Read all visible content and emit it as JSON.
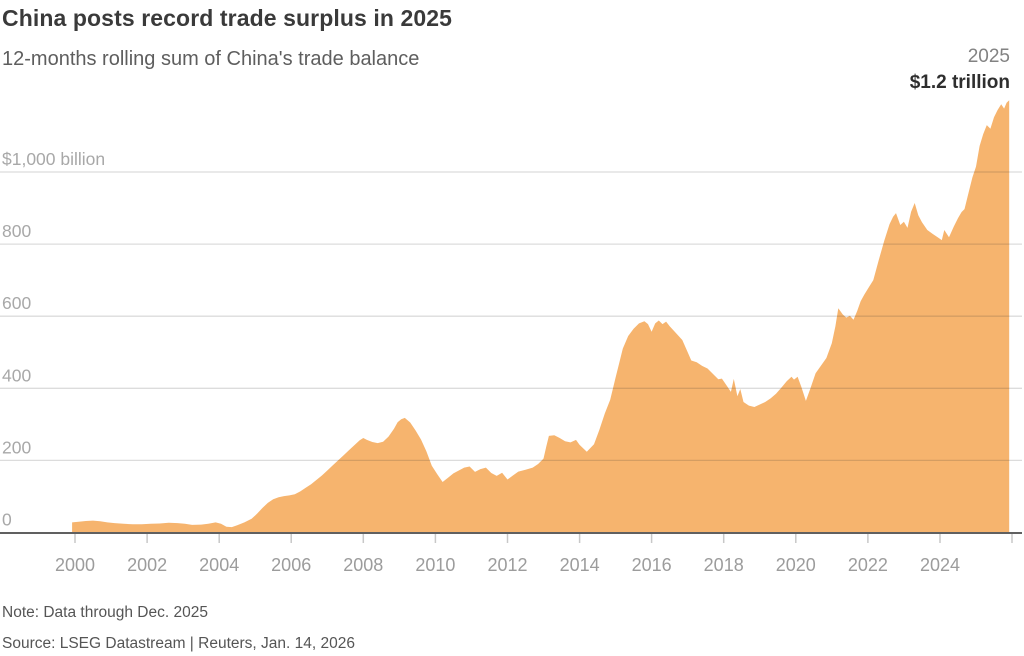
{
  "header": {
    "title": "China posts record trade surplus in 2025",
    "subtitle": "12-months rolling sum of China's trade balance"
  },
  "annotation": {
    "year": "2025",
    "value": "$1.2 trillion"
  },
  "footer": {
    "note": "Note: Data through Dec. 2025",
    "source": "Source: LSEG Datastream | Reuters, Jan. 14, 2026"
  },
  "colors": {
    "area": "#f6b46e",
    "grid": "rgba(40,40,40,0.16)",
    "axis": "#606060",
    "tick": "#c8c8c8",
    "y_label": "#a8a8a8",
    "x_label": "#9c9c9c"
  },
  "chart_data": {
    "type": "area",
    "title": "China posts record trade surplus in 2025",
    "subtitle": "12-months rolling sum of China's trade balance",
    "unit": "US$ billion",
    "x_range": [
      1999.92,
      2025.92
    ],
    "ylim": [
      0,
      1250
    ],
    "grid": "horizontal",
    "legend_position": "none",
    "yticks": [
      {
        "value": 0,
        "label": "0"
      },
      {
        "value": 200,
        "label": "200"
      },
      {
        "value": 400,
        "label": "400"
      },
      {
        "value": 600,
        "label": "600"
      },
      {
        "value": 800,
        "label": "800"
      },
      {
        "value": 1000,
        "label": "$1,000 billion"
      }
    ],
    "xticks": [
      2000,
      2002,
      2004,
      2006,
      2008,
      2010,
      2012,
      2014,
      2016,
      2018,
      2020,
      2022,
      2024
    ],
    "xticks_unlabeled": [
      2026
    ],
    "series": [
      {
        "name": "China trade balance, 12-month rolling sum ($ billion)",
        "points": [
          [
            1999.92,
            28
          ],
          [
            2000.1,
            30
          ],
          [
            2000.3,
            32
          ],
          [
            2000.5,
            33
          ],
          [
            2000.7,
            31
          ],
          [
            2000.9,
            28
          ],
          [
            2001.1,
            26
          ],
          [
            2001.35,
            24
          ],
          [
            2001.6,
            23
          ],
          [
            2001.85,
            23
          ],
          [
            2002.1,
            24
          ],
          [
            2002.35,
            25
          ],
          [
            2002.6,
            27
          ],
          [
            2002.85,
            26
          ],
          [
            2003.05,
            24
          ],
          [
            2003.25,
            21
          ],
          [
            2003.5,
            22
          ],
          [
            2003.7,
            24
          ],
          [
            2003.9,
            28
          ],
          [
            2004.05,
            24
          ],
          [
            2004.2,
            16
          ],
          [
            2004.35,
            15
          ],
          [
            2004.5,
            20
          ],
          [
            2004.7,
            28
          ],
          [
            2004.9,
            38
          ],
          [
            2005.05,
            52
          ],
          [
            2005.2,
            68
          ],
          [
            2005.35,
            82
          ],
          [
            2005.5,
            92
          ],
          [
            2005.65,
            98
          ],
          [
            2005.8,
            101
          ],
          [
            2005.95,
            103
          ],
          [
            2006.1,
            106
          ],
          [
            2006.25,
            114
          ],
          [
            2006.4,
            124
          ],
          [
            2006.55,
            134
          ],
          [
            2006.7,
            146
          ],
          [
            2006.85,
            158
          ],
          [
            2007.0,
            172
          ],
          [
            2007.15,
            186
          ],
          [
            2007.3,
            200
          ],
          [
            2007.45,
            214
          ],
          [
            2007.6,
            228
          ],
          [
            2007.75,
            242
          ],
          [
            2007.9,
            256
          ],
          [
            2008.0,
            262
          ],
          [
            2008.1,
            257
          ],
          [
            2008.25,
            251
          ],
          [
            2008.4,
            248
          ],
          [
            2008.55,
            252
          ],
          [
            2008.7,
            266
          ],
          [
            2008.85,
            288
          ],
          [
            2008.95,
            306
          ],
          [
            2009.05,
            314
          ],
          [
            2009.15,
            318
          ],
          [
            2009.3,
            305
          ],
          [
            2009.45,
            283
          ],
          [
            2009.6,
            258
          ],
          [
            2009.75,
            225
          ],
          [
            2009.9,
            185
          ],
          [
            2010.05,
            162
          ],
          [
            2010.2,
            140
          ],
          [
            2010.35,
            152
          ],
          [
            2010.5,
            164
          ],
          [
            2010.65,
            172
          ],
          [
            2010.8,
            180
          ],
          [
            2010.95,
            183
          ],
          [
            2011.1,
            168
          ],
          [
            2011.25,
            176
          ],
          [
            2011.4,
            180
          ],
          [
            2011.55,
            165
          ],
          [
            2011.7,
            157
          ],
          [
            2011.85,
            166
          ],
          [
            2012.0,
            147
          ],
          [
            2012.15,
            158
          ],
          [
            2012.3,
            169
          ],
          [
            2012.5,
            174
          ],
          [
            2012.7,
            180
          ],
          [
            2012.85,
            190
          ],
          [
            2013.0,
            205
          ],
          [
            2013.08,
            240
          ],
          [
            2013.15,
            268
          ],
          [
            2013.3,
            270
          ],
          [
            2013.45,
            262
          ],
          [
            2013.6,
            253
          ],
          [
            2013.75,
            250
          ],
          [
            2013.9,
            257
          ],
          [
            2014.0,
            243
          ],
          [
            2014.2,
            224
          ],
          [
            2014.4,
            245
          ],
          [
            2014.55,
            285
          ],
          [
            2014.7,
            330
          ],
          [
            2014.85,
            368
          ],
          [
            2015.0,
            430
          ],
          [
            2015.1,
            470
          ],
          [
            2015.2,
            510
          ],
          [
            2015.35,
            545
          ],
          [
            2015.5,
            565
          ],
          [
            2015.65,
            580
          ],
          [
            2015.8,
            586
          ],
          [
            2015.9,
            578
          ],
          [
            2016.0,
            557
          ],
          [
            2016.1,
            580
          ],
          [
            2016.2,
            588
          ],
          [
            2016.3,
            578
          ],
          [
            2016.4,
            585
          ],
          [
            2016.5,
            572
          ],
          [
            2016.65,
            556
          ],
          [
            2016.85,
            534
          ],
          [
            2017.0,
            500
          ],
          [
            2017.1,
            477
          ],
          [
            2017.25,
            472
          ],
          [
            2017.4,
            462
          ],
          [
            2017.55,
            455
          ],
          [
            2017.7,
            440
          ],
          [
            2017.85,
            425
          ],
          [
            2017.95,
            427
          ],
          [
            2018.1,
            405
          ],
          [
            2018.2,
            390
          ],
          [
            2018.28,
            426
          ],
          [
            2018.38,
            378
          ],
          [
            2018.46,
            398
          ],
          [
            2018.55,
            362
          ],
          [
            2018.7,
            352
          ],
          [
            2018.85,
            348
          ],
          [
            2019.0,
            355
          ],
          [
            2019.15,
            362
          ],
          [
            2019.3,
            372
          ],
          [
            2019.45,
            385
          ],
          [
            2019.6,
            402
          ],
          [
            2019.75,
            420
          ],
          [
            2019.88,
            432
          ],
          [
            2019.95,
            424
          ],
          [
            2020.05,
            432
          ],
          [
            2020.15,
            405
          ],
          [
            2020.28,
            365
          ],
          [
            2020.4,
            398
          ],
          [
            2020.55,
            442
          ],
          [
            2020.7,
            463
          ],
          [
            2020.85,
            484
          ],
          [
            2021.0,
            525
          ],
          [
            2021.1,
            572
          ],
          [
            2021.18,
            622
          ],
          [
            2021.3,
            605
          ],
          [
            2021.4,
            596
          ],
          [
            2021.5,
            601
          ],
          [
            2021.6,
            590
          ],
          [
            2021.7,
            614
          ],
          [
            2021.8,
            642
          ],
          [
            2021.9,
            660
          ],
          [
            2022.0,
            676
          ],
          [
            2022.15,
            700
          ],
          [
            2022.3,
            755
          ],
          [
            2022.45,
            808
          ],
          [
            2022.6,
            855
          ],
          [
            2022.7,
            876
          ],
          [
            2022.78,
            886
          ],
          [
            2022.9,
            853
          ],
          [
            2023.0,
            862
          ],
          [
            2023.1,
            845
          ],
          [
            2023.2,
            890
          ],
          [
            2023.3,
            914
          ],
          [
            2023.4,
            880
          ],
          [
            2023.5,
            861
          ],
          [
            2023.65,
            839
          ],
          [
            2023.8,
            828
          ],
          [
            2023.95,
            818
          ],
          [
            2024.05,
            811
          ],
          [
            2024.12,
            839
          ],
          [
            2024.25,
            819
          ],
          [
            2024.38,
            848
          ],
          [
            2024.5,
            872
          ],
          [
            2024.6,
            889
          ],
          [
            2024.68,
            897
          ],
          [
            2024.8,
            945
          ],
          [
            2024.9,
            985
          ],
          [
            2025.0,
            1015
          ],
          [
            2025.1,
            1072
          ],
          [
            2025.2,
            1105
          ],
          [
            2025.3,
            1130
          ],
          [
            2025.4,
            1120
          ],
          [
            2025.5,
            1152
          ],
          [
            2025.6,
            1172
          ],
          [
            2025.7,
            1188
          ],
          [
            2025.78,
            1176
          ],
          [
            2025.85,
            1192
          ],
          [
            2025.92,
            1199
          ]
        ]
      }
    ]
  }
}
